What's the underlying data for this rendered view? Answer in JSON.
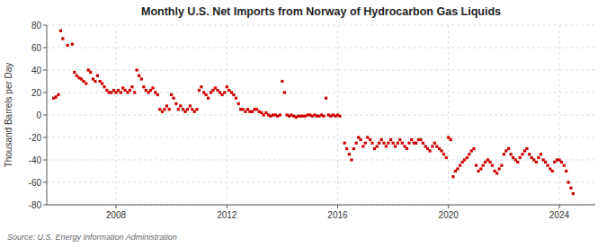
{
  "chart_data": {
    "type": "scatter",
    "title": "Monthly U.S. Net Imports from Norway of Hydrocarbon Gas Liquids",
    "ylabel": "Thousand Barrels per Day",
    "source": "Source: U.S. Energy Information Administration",
    "color": "#cc0000",
    "marker": "square",
    "grid": true,
    "xlim": [
      2005.5,
      2025.3
    ],
    "xticks": [
      2008,
      2012,
      2016,
      2020,
      2024
    ],
    "ylim": [
      -80,
      80
    ],
    "yticks": [
      -80,
      -60,
      -40,
      -20,
      0,
      20,
      40,
      60,
      80
    ],
    "x": [
      2005.75,
      2005.83,
      2005.92,
      2006.0,
      2006.08,
      2006.25,
      2006.42,
      2006.5,
      2006.58,
      2006.67,
      2006.75,
      2006.83,
      2006.92,
      2007.0,
      2007.08,
      2007.17,
      2007.25,
      2007.33,
      2007.42,
      2007.5,
      2007.58,
      2007.67,
      2007.75,
      2007.83,
      2007.92,
      2008.0,
      2008.08,
      2008.17,
      2008.25,
      2008.33,
      2008.42,
      2008.5,
      2008.58,
      2008.67,
      2008.75,
      2008.83,
      2008.92,
      2009.0,
      2009.08,
      2009.17,
      2009.25,
      2009.33,
      2009.42,
      2009.5,
      2009.58,
      2009.67,
      2009.75,
      2009.83,
      2009.92,
      2010.0,
      2010.08,
      2010.17,
      2010.25,
      2010.33,
      2010.42,
      2010.5,
      2010.58,
      2010.67,
      2010.75,
      2010.83,
      2010.92,
      2011.0,
      2011.08,
      2011.17,
      2011.25,
      2011.33,
      2011.42,
      2011.5,
      2011.58,
      2011.67,
      2011.75,
      2011.83,
      2011.92,
      2012.0,
      2012.08,
      2012.17,
      2012.25,
      2012.33,
      2012.42,
      2012.5,
      2012.58,
      2012.67,
      2012.75,
      2012.83,
      2012.92,
      2013.0,
      2013.08,
      2013.17,
      2013.25,
      2013.33,
      2013.42,
      2013.5,
      2013.58,
      2013.67,
      2013.75,
      2013.83,
      2013.92,
      2014.0,
      2014.08,
      2014.17,
      2014.25,
      2014.33,
      2014.42,
      2014.5,
      2014.58,
      2014.67,
      2014.75,
      2014.83,
      2014.92,
      2015.0,
      2015.08,
      2015.17,
      2015.25,
      2015.33,
      2015.42,
      2015.5,
      2015.58,
      2015.67,
      2015.75,
      2015.83,
      2015.92,
      2016.0,
      2016.08,
      2016.25,
      2016.33,
      2016.42,
      2016.5,
      2016.58,
      2016.67,
      2016.75,
      2016.83,
      2016.92,
      2017.0,
      2017.08,
      2017.17,
      2017.25,
      2017.33,
      2017.42,
      2017.5,
      2017.58,
      2017.67,
      2017.75,
      2017.83,
      2017.92,
      2018.0,
      2018.08,
      2018.17,
      2018.25,
      2018.33,
      2018.42,
      2018.5,
      2018.58,
      2018.67,
      2018.75,
      2018.83,
      2018.92,
      2019.0,
      2019.08,
      2019.17,
      2019.25,
      2019.33,
      2019.42,
      2019.5,
      2019.58,
      2019.67,
      2019.75,
      2019.83,
      2019.92,
      2020.0,
      2020.08,
      2020.17,
      2020.25,
      2020.33,
      2020.42,
      2020.5,
      2020.58,
      2020.67,
      2020.75,
      2020.83,
      2020.92,
      2021.0,
      2021.08,
      2021.17,
      2021.25,
      2021.33,
      2021.42,
      2021.5,
      2021.58,
      2021.67,
      2021.75,
      2021.83,
      2021.92,
      2022.0,
      2022.08,
      2022.17,
      2022.25,
      2022.33,
      2022.42,
      2022.5,
      2022.58,
      2022.67,
      2022.75,
      2022.83,
      2022.92,
      2023.0,
      2023.08,
      2023.17,
      2023.25,
      2023.33,
      2023.42,
      2023.5,
      2023.58,
      2023.67,
      2023.75,
      2023.83,
      2023.92,
      2024.0,
      2024.08,
      2024.17,
      2024.25,
      2024.33,
      2024.42,
      2024.5
    ],
    "values": [
      15,
      16,
      18,
      75,
      68,
      62,
      63,
      38,
      35,
      33,
      32,
      30,
      28,
      40,
      38,
      32,
      30,
      35,
      30,
      28,
      25,
      22,
      20,
      20,
      22,
      20,
      22,
      20,
      24,
      22,
      20,
      22,
      25,
      20,
      40,
      35,
      32,
      25,
      22,
      20,
      22,
      24,
      20,
      18,
      5,
      3,
      5,
      8,
      5,
      18,
      15,
      10,
      5,
      8,
      5,
      3,
      5,
      8,
      5,
      3,
      5,
      22,
      25,
      20,
      18,
      15,
      20,
      22,
      24,
      22,
      20,
      18,
      20,
      25,
      22,
      20,
      18,
      15,
      10,
      5,
      5,
      3,
      5,
      3,
      3,
      5,
      5,
      3,
      2,
      0,
      2,
      0,
      -1,
      0,
      0,
      -1,
      0,
      30,
      20,
      0,
      -1,
      0,
      -1,
      -2,
      -1,
      -1,
      -1,
      -1,
      0,
      0,
      -1,
      0,
      -1,
      -1,
      0,
      -1,
      15,
      0,
      -1,
      0,
      -1,
      0,
      -1,
      -25,
      -30,
      -35,
      -40,
      -30,
      -25,
      -20,
      -22,
      -28,
      -25,
      -20,
      -22,
      -25,
      -30,
      -28,
      -25,
      -22,
      -25,
      -28,
      -25,
      -22,
      -25,
      -28,
      -25,
      -22,
      -25,
      -28,
      -30,
      -25,
      -22,
      -25,
      -25,
      -22,
      -22,
      -25,
      -28,
      -30,
      -32,
      -28,
      -25,
      -28,
      -30,
      -32,
      -35,
      -38,
      -20,
      -22,
      -55,
      -50,
      -48,
      -45,
      -42,
      -40,
      -38,
      -35,
      -32,
      -30,
      -45,
      -50,
      -48,
      -45,
      -42,
      -40,
      -42,
      -45,
      -50,
      -52,
      -48,
      -45,
      -35,
      -32,
      -30,
      -35,
      -38,
      -40,
      -42,
      -38,
      -35,
      -32,
      -30,
      -35,
      -38,
      -40,
      -42,
      -38,
      -35,
      -40,
      -42,
      -45,
      -48,
      -50,
      -42,
      -40,
      -40,
      -42,
      -45,
      -50,
      -60,
      -65,
      -70
    ]
  }
}
